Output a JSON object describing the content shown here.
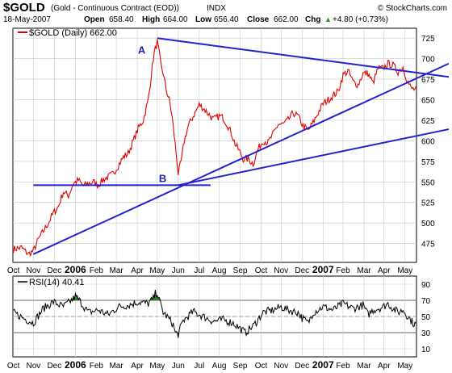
{
  "header": {
    "symbol": "$GOLD",
    "name": "(Gold - Continuous Contract (EOD))",
    "exchange": "INDX",
    "watermark": "© StockCharts.com",
    "date": "18-May-2007",
    "quote": {
      "open_label": "Open",
      "open": "658.40",
      "high_label": "High",
      "high": "664.00",
      "low_label": "Low",
      "low": "656.40",
      "close_label": "Close",
      "close": "662.00",
      "chg_label": "Chg",
      "chg": "+4.80 (+0.73%)"
    },
    "legend": "$GOLD (Daily) 662.00",
    "rsi_legend": "RSI(14) 40.41",
    "up_arrow": "▲"
  },
  "colors": {
    "price": "#e00000",
    "trendline": "#2222cc",
    "rsi": "#000000",
    "rsi_fill": "#2e7d32",
    "grid": "#c8c8c8",
    "annotation": "#2222aa"
  },
  "chart_data": [
    {
      "type": "line",
      "title": "$GOLD (Daily) 662.00",
      "x_ticks": [
        "Oct",
        "Nov",
        "Dec",
        "2006",
        "Feb",
        "Mar",
        "Apr",
        "May",
        "Jun",
        "Jul",
        "Aug",
        "Sep",
        "Oct",
        "Nov",
        "Dec",
        "2007",
        "Feb",
        "Mar",
        "Apr",
        "May"
      ],
      "x_tick_index": [
        0,
        20,
        41,
        62,
        83,
        103,
        124,
        144,
        165,
        186,
        206,
        227,
        248,
        268,
        289,
        310,
        330,
        351,
        371,
        392
      ],
      "y_ticks": [
        475,
        500,
        525,
        550,
        575,
        600,
        625,
        650,
        675,
        700,
        725
      ],
      "ylim": [
        452,
        737
      ],
      "points_per_session": 404,
      "anchors": [
        [
          0,
          468
        ],
        [
          8,
          470
        ],
        [
          15,
          462
        ],
        [
          20,
          466
        ],
        [
          25,
          480
        ],
        [
          30,
          490
        ],
        [
          35,
          500
        ],
        [
          40,
          512
        ],
        [
          45,
          520
        ],
        [
          50,
          538
        ],
        [
          55,
          533
        ],
        [
          60,
          548
        ],
        [
          65,
          552
        ],
        [
          70,
          545
        ],
        [
          75,
          548
        ],
        [
          80,
          550
        ],
        [
          85,
          546
        ],
        [
          90,
          553
        ],
        [
          95,
          556
        ],
        [
          100,
          560
        ],
        [
          105,
          570
        ],
        [
          110,
          580
        ],
        [
          115,
          585
        ],
        [
          120,
          600
        ],
        [
          125,
          615
        ],
        [
          130,
          625
        ],
        [
          135,
          650
        ],
        [
          138,
          680
        ],
        [
          140,
          700
        ],
        [
          142,
          712
        ],
        [
          144,
          720
        ],
        [
          146,
          706
        ],
        [
          148,
          690
        ],
        [
          150,
          682
        ],
        [
          153,
          662
        ],
        [
          156,
          650
        ],
        [
          159,
          628
        ],
        [
          162,
          595
        ],
        [
          165,
          560
        ],
        [
          168,
          575
        ],
        [
          171,
          600
        ],
        [
          175,
          618
        ],
        [
          180,
          630
        ],
        [
          186,
          644
        ],
        [
          190,
          640
        ],
        [
          196,
          632
        ],
        [
          200,
          626
        ],
        [
          206,
          630
        ],
        [
          210,
          628
        ],
        [
          214,
          620
        ],
        [
          218,
          610
        ],
        [
          222,
          596
        ],
        [
          226,
          588
        ],
        [
          230,
          578
        ],
        [
          235,
          578
        ],
        [
          240,
          572
        ],
        [
          245,
          590
        ],
        [
          250,
          600
        ],
        [
          255,
          598
        ],
        [
          260,
          608
        ],
        [
          265,
          620
        ],
        [
          270,
          620
        ],
        [
          275,
          625
        ],
        [
          280,
          634
        ],
        [
          285,
          630
        ],
        [
          289,
          620
        ],
        [
          295,
          612
        ],
        [
          300,
          622
        ],
        [
          305,
          634
        ],
        [
          310,
          645
        ],
        [
          315,
          650
        ],
        [
          320,
          655
        ],
        [
          325,
          660
        ],
        [
          330,
          680
        ],
        [
          335,
          685
        ],
        [
          340,
          672
        ],
        [
          345,
          668
        ],
        [
          350,
          682
        ],
        [
          355,
          682
        ],
        [
          360,
          670
        ],
        [
          365,
          688
        ],
        [
          370,
          688
        ],
        [
          375,
          694
        ],
        [
          380,
          692
        ],
        [
          385,
          684
        ],
        [
          390,
          690
        ],
        [
          394,
          674
        ],
        [
          398,
          664
        ],
        [
          403,
          662
        ]
      ],
      "series": [
        {
          "values_key": "anchors"
        }
      ],
      "annotations": [
        {
          "text": "A",
          "at_index": 144,
          "value": 720
        },
        {
          "text": "B",
          "at_index": 165,
          "value": 550
        }
      ],
      "trendlines": [
        {
          "from": [
            144,
            725
          ],
          "to": [
            404,
            683
          ]
        },
        {
          "from": [
            20,
            462
          ],
          "to": [
            404,
            676
          ]
        },
        {
          "from": [
            20,
            546
          ],
          "to": [
            165,
            546
          ]
        },
        {
          "from": [
            165,
            546
          ],
          "to": [
            404,
            606
          ]
        }
      ]
    },
    {
      "type": "line",
      "title": "RSI(14) 40.41",
      "y_ticks": [
        10,
        30,
        50,
        70,
        90
      ],
      "ylim": [
        0,
        100
      ],
      "overbought": 70,
      "oversold": 30,
      "anchors": [
        [
          0,
          55
        ],
        [
          10,
          48
        ],
        [
          20,
          42
        ],
        [
          30,
          60
        ],
        [
          40,
          68
        ],
        [
          50,
          62
        ],
        [
          60,
          72
        ],
        [
          62,
          75
        ],
        [
          66,
          70
        ],
        [
          75,
          55
        ],
        [
          85,
          58
        ],
        [
          95,
          52
        ],
        [
          105,
          62
        ],
        [
          115,
          64
        ],
        [
          125,
          68
        ],
        [
          135,
          66
        ],
        [
          140,
          72
        ],
        [
          142,
          78
        ],
        [
          144,
          80
        ],
        [
          146,
          70
        ],
        [
          150,
          55
        ],
        [
          155,
          48
        ],
        [
          160,
          40
        ],
        [
          162,
          30
        ],
        [
          165,
          28
        ],
        [
          170,
          45
        ],
        [
          180,
          56
        ],
        [
          190,
          50
        ],
        [
          200,
          44
        ],
        [
          210,
          46
        ],
        [
          220,
          42
        ],
        [
          226,
          36
        ],
        [
          232,
          30
        ],
        [
          240,
          38
        ],
        [
          250,
          55
        ],
        [
          260,
          58
        ],
        [
          268,
          62
        ],
        [
          275,
          58
        ],
        [
          285,
          55
        ],
        [
          289,
          48
        ],
        [
          295,
          42
        ],
        [
          300,
          55
        ],
        [
          310,
          62
        ],
        [
          320,
          58
        ],
        [
          330,
          66
        ],
        [
          340,
          60
        ],
        [
          350,
          64
        ],
        [
          355,
          52
        ],
        [
          360,
          58
        ],
        [
          370,
          62
        ],
        [
          375,
          66
        ],
        [
          380,
          60
        ],
        [
          385,
          55
        ],
        [
          390,
          58
        ],
        [
          395,
          50
        ],
        [
          400,
          42
        ],
        [
          403,
          40
        ]
      ]
    }
  ]
}
